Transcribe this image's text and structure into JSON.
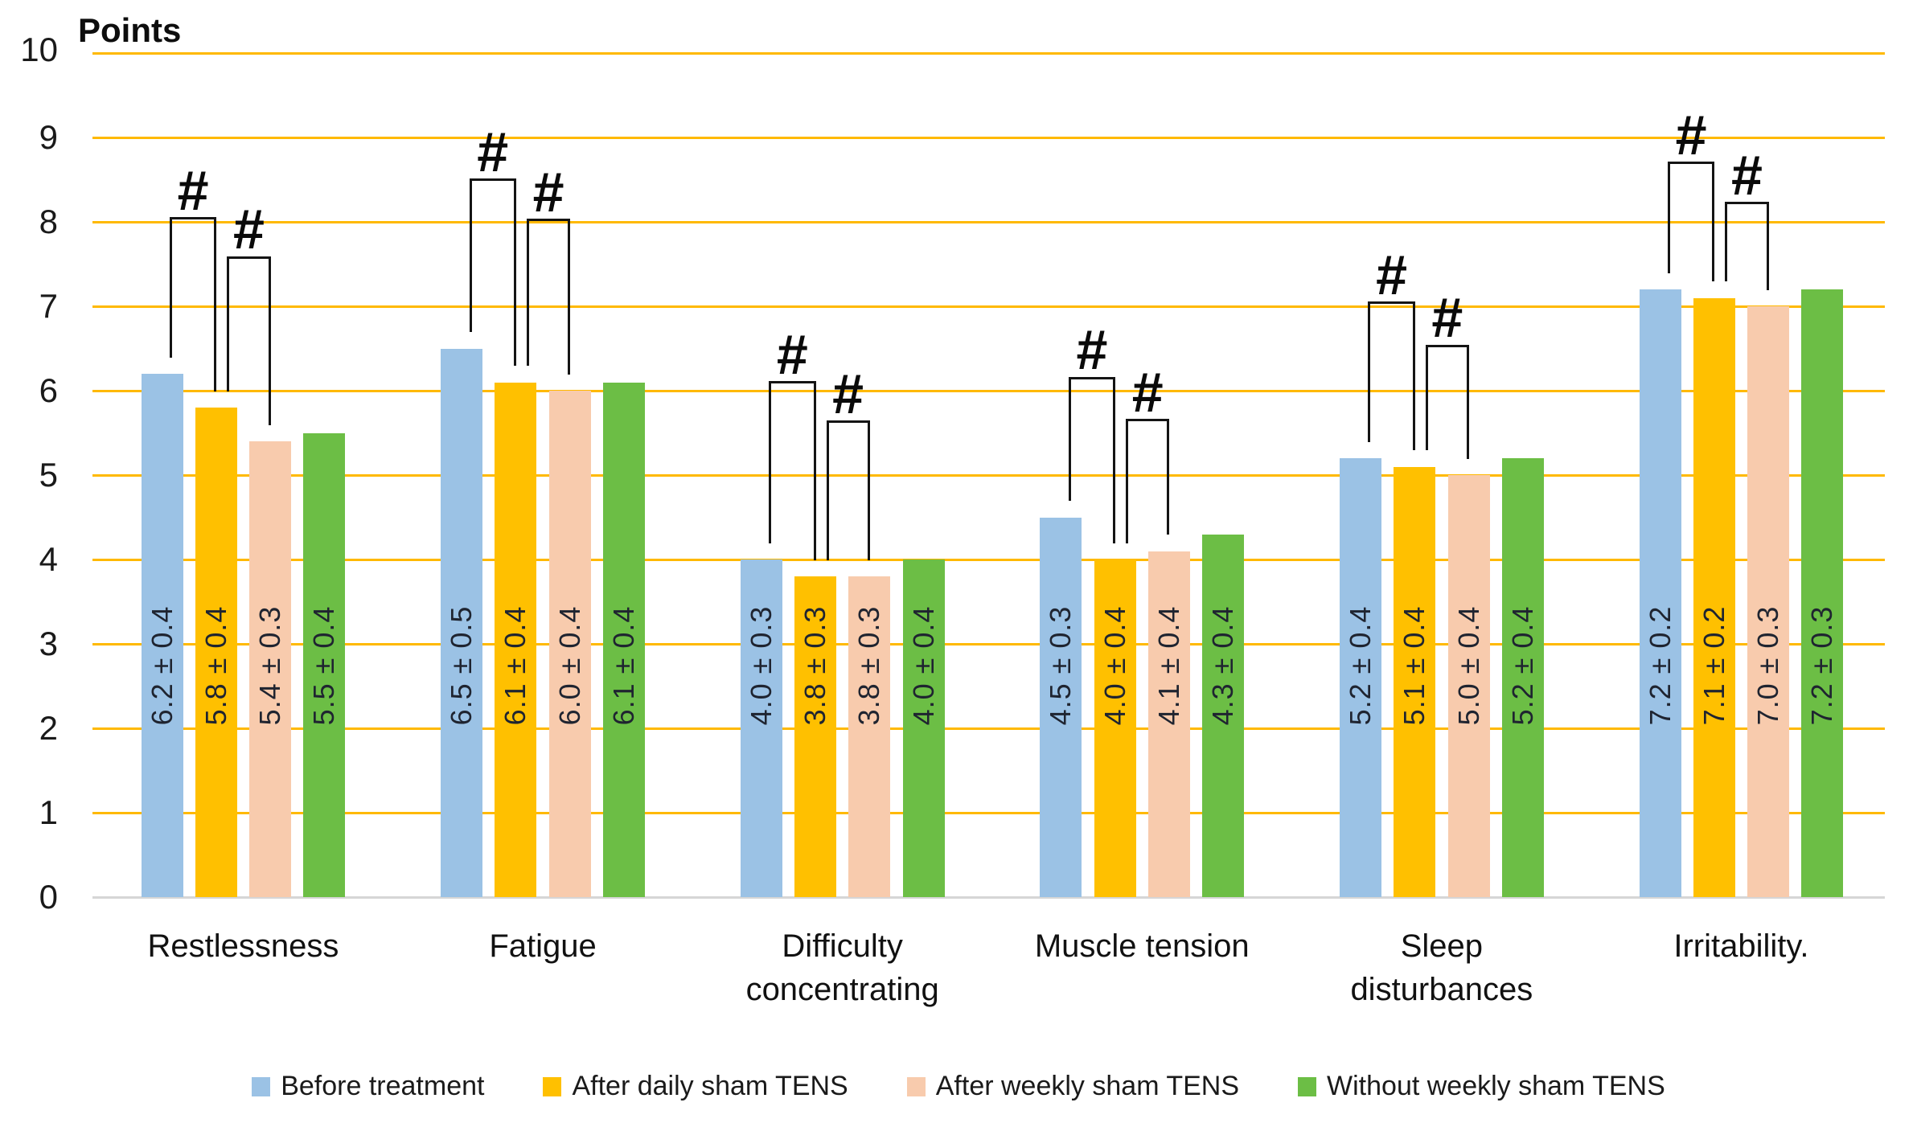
{
  "title": "Points",
  "chart_data": {
    "type": "bar",
    "title": "Points",
    "ylabel": "Points",
    "xlabel": "",
    "ylim": [
      0,
      10
    ],
    "y_ticks": [
      0,
      1,
      2,
      3,
      4,
      5,
      6,
      7,
      8,
      9,
      10
    ],
    "grid": true,
    "grid_color": "#FFB900",
    "baseline_color": "#D6D6D6",
    "legend_position": "bottom",
    "categories": [
      "Restlessness",
      "Fatigue",
      "Difficulty concentrating",
      "Muscle tension",
      "Sleep disturbances",
      "Irritability."
    ],
    "series": [
      {
        "name": "Before treatment",
        "color": "#9BC2E5",
        "values": [
          6.2,
          6.5,
          4.0,
          4.5,
          5.2,
          7.2
        ],
        "bar_labels": [
          "6.2 ± 0.4",
          "6.5 ± 0.5",
          "4.0 ± 0.3",
          "4.5 ± 0.3",
          "5.2 ± 0.4",
          "7.2 ± 0.2"
        ]
      },
      {
        "name": "After daily sham TENS",
        "color": "#FFC000",
        "values": [
          5.8,
          6.1,
          3.8,
          4.0,
          5.1,
          7.1
        ],
        "bar_labels": [
          "5.8 ± 0.4",
          "6.1 ± 0.4",
          "3.8 ± 0.3",
          "4.0 ± 0.4",
          "5.1 ± 0.4",
          "7.1 ± 0.2"
        ]
      },
      {
        "name": "After weekly sham TENS",
        "color": "#F8CBAD",
        "values": [
          5.4,
          6.0,
          3.8,
          4.1,
          5.0,
          7.0
        ],
        "bar_labels": [
          "5.4 ± 0.3",
          "6.0 ± 0.4",
          "3.8 ± 0.3",
          "4.1 ± 0.4",
          "5.0 ± 0.4",
          "7.0 ± 0.3"
        ]
      },
      {
        "name": "Without weekly sham TENS",
        "color": "#6CBE45",
        "values": [
          5.5,
          6.1,
          4.0,
          4.3,
          5.2,
          7.2
        ],
        "bar_labels": [
          "5.5 ± 0.4",
          "6.1 ± 0.4",
          "4.0 ± 0.4",
          "4.3 ± 0.4",
          "5.2 ± 0.4",
          "7.2 ± 0.3"
        ]
      }
    ],
    "significance_markers": [
      {
        "group": 0,
        "between": [
          0,
          1
        ],
        "top": 8.04,
        "symbol": "#"
      },
      {
        "group": 0,
        "between": [
          1,
          2
        ],
        "top": 7.58,
        "symbol": "#"
      },
      {
        "group": 1,
        "between": [
          0,
          1
        ],
        "top": 8.5,
        "symbol": "#"
      },
      {
        "group": 1,
        "between": [
          1,
          2
        ],
        "top": 8.02,
        "symbol": "#"
      },
      {
        "group": 2,
        "between": [
          0,
          1
        ],
        "top": 6.1,
        "symbol": "#"
      },
      {
        "group": 2,
        "between": [
          1,
          2
        ],
        "top": 5.63,
        "symbol": "#"
      },
      {
        "group": 3,
        "between": [
          0,
          1
        ],
        "top": 6.15,
        "symbol": "#"
      },
      {
        "group": 3,
        "between": [
          1,
          2
        ],
        "top": 5.65,
        "symbol": "#"
      },
      {
        "group": 4,
        "between": [
          0,
          1
        ],
        "top": 7.04,
        "symbol": "#"
      },
      {
        "group": 4,
        "between": [
          1,
          2
        ],
        "top": 6.53,
        "symbol": "#"
      },
      {
        "group": 5,
        "between": [
          0,
          1
        ],
        "top": 8.7,
        "symbol": "#"
      },
      {
        "group": 5,
        "between": [
          1,
          2
        ],
        "top": 8.22,
        "symbol": "#"
      }
    ]
  }
}
